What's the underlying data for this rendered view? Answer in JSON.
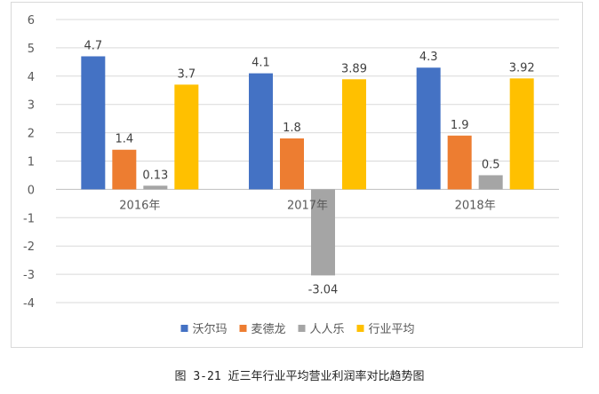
{
  "chart_data": {
    "type": "bar",
    "categories": [
      "2016年",
      "2017年",
      "2018年"
    ],
    "series": [
      {
        "name": "沃尔玛",
        "values": [
          4.7,
          4.1,
          4.3
        ],
        "labels": [
          "4.7",
          "4.1",
          "4.3"
        ],
        "color": "#4472C4"
      },
      {
        "name": "麦德龙",
        "values": [
          1.4,
          1.8,
          1.9
        ],
        "labels": [
          "1.4",
          "1.8",
          "1.9"
        ],
        "color": "#ED7D31"
      },
      {
        "name": "人人乐",
        "values": [
          0.13,
          -3.04,
          0.5
        ],
        "labels": [
          "0.13",
          "-3.04",
          "0.5"
        ],
        "color": "#A5A5A5"
      },
      {
        "name": "行业平均",
        "values": [
          3.7,
          3.89,
          3.92
        ],
        "labels": [
          "3.7",
          "3.89",
          "3.92"
        ],
        "color": "#FFC000"
      }
    ],
    "title": "",
    "xlabel": "",
    "ylabel": "",
    "ylim": [
      -4,
      6
    ],
    "yticks": [
      6,
      5,
      4,
      3,
      2,
      1,
      0,
      -1,
      -2,
      -3,
      -4
    ],
    "grid": true,
    "legend": "bottom"
  },
  "caption": "图 3-21 近三年行业平均营业利润率对比趋势图"
}
